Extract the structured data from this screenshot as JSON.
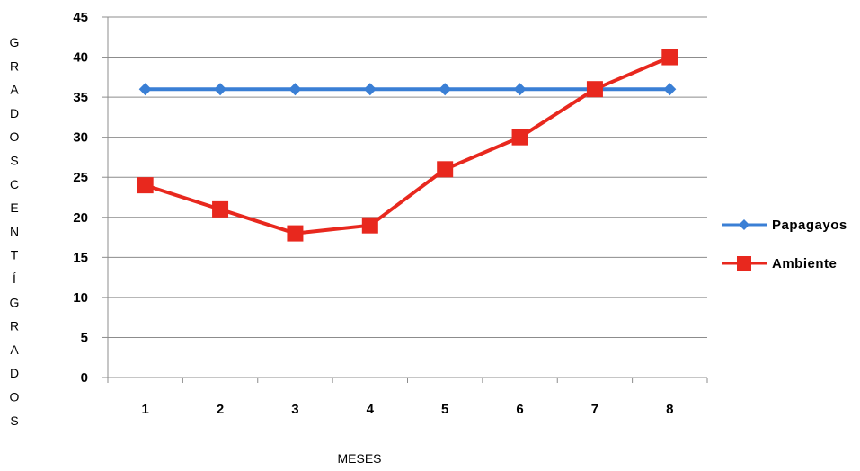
{
  "chart_data": {
    "type": "line",
    "title": "",
    "xlabel": "MESES",
    "ylabel": "GRADOS CENTÍGRADOS",
    "categories": [
      "1",
      "2",
      "3",
      "4",
      "5",
      "6",
      "7",
      "8"
    ],
    "ylim": [
      0,
      45
    ],
    "yticks": [
      "0",
      "5",
      "10",
      "15",
      "20",
      "25",
      "30",
      "35",
      "40",
      "45"
    ],
    "grid": "horizontal",
    "legend_position": "right",
    "series": [
      {
        "name": "Papagayos",
        "values": [
          36,
          36,
          36,
          36,
          36,
          36,
          36,
          36
        ],
        "color": "#3a7fd5",
        "marker": "diamond"
      },
      {
        "name": "Ambiente",
        "values": [
          24,
          21,
          18,
          19,
          26,
          30,
          36,
          40
        ],
        "color": "#e8281e",
        "marker": "square"
      }
    ]
  }
}
